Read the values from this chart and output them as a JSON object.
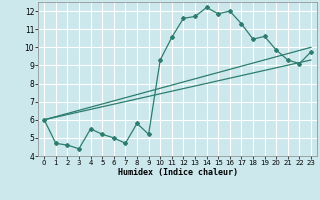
{
  "xlabel": "Humidex (Indice chaleur)",
  "bg_color": "#cce8ec",
  "grid_color": "#ffffff",
  "line_color": "#2d7d6e",
  "xlim": [
    -0.5,
    23.5
  ],
  "ylim": [
    4,
    12.5
  ],
  "yticks": [
    4,
    5,
    6,
    7,
    8,
    9,
    10,
    11,
    12
  ],
  "xticks": [
    0,
    1,
    2,
    3,
    4,
    5,
    6,
    7,
    8,
    9,
    10,
    11,
    12,
    13,
    14,
    15,
    16,
    17,
    18,
    19,
    20,
    21,
    22,
    23
  ],
  "series1_x": [
    0,
    1,
    2,
    3,
    4,
    5,
    6,
    7,
    8,
    9,
    10,
    11,
    12,
    13,
    14,
    15,
    16,
    17,
    18,
    19,
    20,
    21,
    22,
    23
  ],
  "series1_y": [
    6.0,
    4.7,
    4.6,
    4.4,
    5.5,
    5.2,
    5.0,
    4.7,
    5.8,
    5.2,
    9.3,
    10.55,
    11.6,
    11.7,
    12.2,
    11.85,
    12.0,
    11.3,
    10.45,
    10.6,
    9.85,
    9.3,
    9.1,
    9.75
  ],
  "series2_x": [
    0,
    23
  ],
  "series2_y": [
    6.0,
    10.0
  ],
  "series3_x": [
    0,
    23
  ],
  "series3_y": [
    6.0,
    9.3
  ]
}
